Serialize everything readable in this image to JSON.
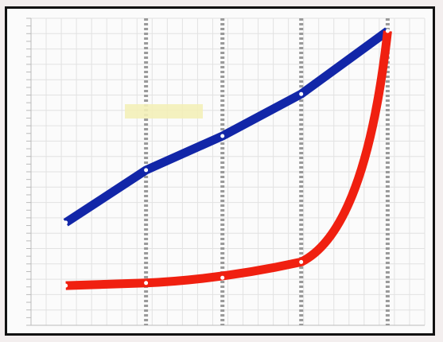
{
  "chart_data": {
    "type": "line",
    "x": [
      0,
      1,
      2,
      3,
      4
    ],
    "series": [
      {
        "color": "#1226a8",
        "values": [
          0.27,
          0.47,
          0.6,
          0.76,
          1.0
        ],
        "x": [
          -0.05,
          0.99,
          1.98,
          3.0,
          4.12
        ]
      },
      {
        "color": "#f02010",
        "values": [
          0.03,
          0.04,
          0.06,
          0.12,
          1.0
        ],
        "x": [
          -0.05,
          0.99,
          1.98,
          3.0,
          4.12
        ]
      }
    ],
    "grid": true,
    "vlines_highlighted": [
      0.99,
      1.98,
      3.0,
      4.12
    ]
  }
}
